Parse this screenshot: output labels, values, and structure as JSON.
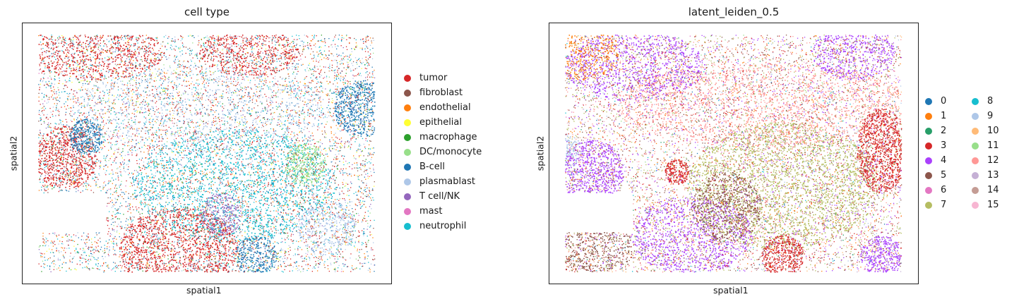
{
  "panels": [
    {
      "title": "cell type",
      "xlabel": "spatial1",
      "ylabel": "spatial2",
      "legend_columns": 1,
      "legend": [
        {
          "label": "tumor",
          "color": "#d62728"
        },
        {
          "label": "fibroblast",
          "color": "#8c564b"
        },
        {
          "label": "endothelial",
          "color": "#ff7f0e"
        },
        {
          "label": "epithelial",
          "color": "#ffff33"
        },
        {
          "label": "macrophage",
          "color": "#2ca02c"
        },
        {
          "label": "DC/monocyte",
          "color": "#98df8a"
        },
        {
          "label": "B-cell",
          "color": "#1f77b4"
        },
        {
          "label": "plasmablast",
          "color": "#aec7e8"
        },
        {
          "label": "T cell/NK",
          "color": "#9467bd"
        },
        {
          "label": "mast",
          "color": "#e377c2"
        },
        {
          "label": "neutrophil",
          "color": "#17becf"
        }
      ]
    },
    {
      "title": "latent_leiden_0.5",
      "xlabel": "spatial1",
      "ylabel": "spatial2",
      "legend_columns": 2,
      "legend": [
        {
          "label": "0",
          "color": "#1f77b4"
        },
        {
          "label": "1",
          "color": "#ff7f0e"
        },
        {
          "label": "2",
          "color": "#279e68"
        },
        {
          "label": "3",
          "color": "#d62728"
        },
        {
          "label": "4",
          "color": "#aa40fc"
        },
        {
          "label": "5",
          "color": "#8c564b"
        },
        {
          "label": "6",
          "color": "#e377c2"
        },
        {
          "label": "7",
          "color": "#b5bd61"
        },
        {
          "label": "8",
          "color": "#17becf"
        },
        {
          "label": "9",
          "color": "#aec7e8"
        },
        {
          "label": "10",
          "color": "#ffbb78"
        },
        {
          "label": "11",
          "color": "#98df8a"
        },
        {
          "label": "12",
          "color": "#ff9896"
        },
        {
          "label": "13",
          "color": "#c5b0d5"
        },
        {
          "label": "14",
          "color": "#c49c94"
        },
        {
          "label": "15",
          "color": "#f7b6d2"
        }
      ]
    }
  ],
  "chart_data": [
    {
      "type": "scatter",
      "title": "cell type",
      "xlabel": "spatial1",
      "ylabel": "spatial2",
      "grid": false,
      "legend_position": "right",
      "categories": [
        "tumor",
        "fibroblast",
        "endothelial",
        "epithelial",
        "macrophage",
        "DC/monocyte",
        "B-cell",
        "plasmablast",
        "T cell/NK",
        "mast",
        "neutrophil"
      ]
    },
    {
      "type": "scatter",
      "title": "latent_leiden_0.5",
      "xlabel": "spatial1",
      "ylabel": "spatial2",
      "grid": false,
      "legend_position": "right",
      "categories": [
        "0",
        "1",
        "2",
        "3",
        "4",
        "5",
        "6",
        "7",
        "8",
        "9",
        "10",
        "11",
        "12",
        "13",
        "14",
        "15"
      ]
    }
  ]
}
